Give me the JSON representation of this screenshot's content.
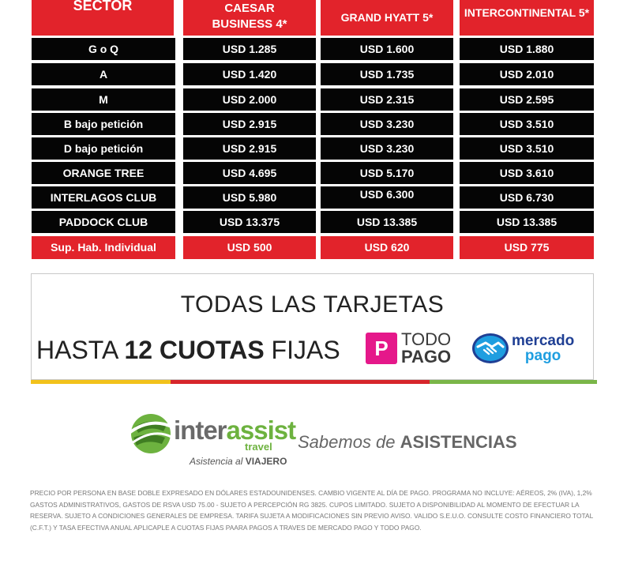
{
  "table": {
    "headers": [
      {
        "label": "SECTOR"
      },
      {
        "label": "CAESAR\nBUSINESS 4*"
      },
      {
        "label": "GRAND HYATT 5*"
      },
      {
        "label": "INTERCONTINENTAL 5*"
      }
    ],
    "rows": [
      {
        "sector": "G o Q",
        "caesar": "USD  1.285",
        "hyatt": "USD 1.600",
        "intercontinental": "USD 1.880"
      },
      {
        "sector": "A",
        "caesar": "USD 1.420",
        "hyatt": "USD 1.735",
        "intercontinental": "USD 2.010"
      },
      {
        "sector": "M",
        "caesar": "USD 2.000",
        "hyatt": "USD 2.315",
        "intercontinental": "USD 2.595"
      },
      {
        "sector": "B bajo petición",
        "caesar": "USD 2.915",
        "hyatt": "USD 3.230",
        "intercontinental": "USD 3.510"
      },
      {
        "sector": "D bajo petición",
        "caesar": "USD 2.915",
        "hyatt": "USD 3.230",
        "intercontinental": "USD 3.510"
      },
      {
        "sector": "ORANGE TREE",
        "caesar": "USD 4.695",
        "hyatt": "USD 5.170",
        "intercontinental": "USD 3.610"
      },
      {
        "sector": "INTERLAGOS CLUB",
        "caesar": "USD 5.980",
        "hyatt": "USD 6.300",
        "intercontinental": "USD 6.730"
      },
      {
        "sector": "PADDOCK CLUB",
        "caesar": "USD 13.375",
        "hyatt": "USD 13.385",
        "intercontinental": "USD 13.385"
      }
    ],
    "supplement": {
      "label": "Sup. Hab. Individual",
      "caesar": "USD 500",
      "hyatt": "USD 620",
      "intercontinental": "USD 775"
    }
  },
  "payments": {
    "headline": "TODAS LAS TARJETAS",
    "installments_prefix": "HASTA",
    "installments_bold": "12 CUOTAS",
    "installments_suffix": "FIJAS",
    "todopago": {
      "icon": "P",
      "line1": "TODO",
      "line2": "PAGO"
    },
    "mercadopago": {
      "line1": "mercado",
      "line2": "pago"
    }
  },
  "brand": {
    "name_part1": "inter",
    "name_part2": "assist",
    "travel": "travel",
    "tagline_italic": "Asistencia al",
    "tagline_bold": "VIAJERO",
    "slogan_italic": "Sabemos de",
    "slogan_bold": "ASISTENCIAS"
  },
  "footnote": "PRECIO POR PERSONA EN BASE DOBLE EXPRESADO EN DÓLARES ESTADOUNIDENSES. CAMBIO VIGENTE AL DÍA DE PAGO. PROGRAMA NO INCLUYE: AÉREOS, 2% (IVA),  1,2% GASTOS ADMINISTRATIVOS, GASTOS DE RSVA USD 75.00 - SUJETO A PERCEPCIÓN RG 3825. CUPOS LIMITADO. SUJETO A DISPONIBILIDAD AL MOMENTO DE EFECTUAR LA RESERVA. SUJETO A CONDICIONES GENERALES DE EMPRESA. TARIFA SUJETA A MODIFICACIONES SIN PREVIO AVISO.  VALIDO S.E.U.O. CONSULTE COSTO FINANCIERO TOTAL (C.F.T.) Y TASA EFECTIVA ANUAL APLICAPLE A CUOTAS FIJAS PAARA PAGOS A TRAVES DE MERCADO PAGO Y TODO PAGO.",
  "colors": {
    "table_red": "#e2232b",
    "table_black": "#050505",
    "bar_yellow": "#f2c21b",
    "bar_red": "#d7252b",
    "bar_green": "#7ab648",
    "todopago_pink": "#e5188a",
    "mercadopago_navy": "#1f3f94",
    "mercadopago_blue": "#1e9ee0"
  }
}
